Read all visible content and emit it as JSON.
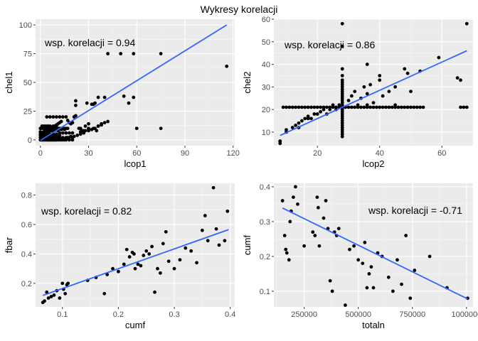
{
  "title": "Wykresy korelacji",
  "colors": {
    "panel_bg": "#ebebeb",
    "grid_major": "#ffffff",
    "grid_minor": "#f5f5f5",
    "points": "#000000",
    "trend_line": "#3366ff"
  },
  "chart_data": [
    {
      "type": "scatter",
      "title": "",
      "xlabel": "lcop1",
      "ylabel": "chel1",
      "xlim": [
        -3,
        121
      ],
      "ylim": [
        -5,
        105
      ],
      "xticks": [
        0,
        30,
        60,
        90,
        120
      ],
      "yticks": [
        0,
        25,
        50,
        75,
        100
      ],
      "annotation": "wsp. korelacji = 0.94",
      "trend": {
        "x": [
          0,
          116
        ],
        "y": [
          -0.5,
          100
        ]
      },
      "points": {
        "x": [
          0,
          0.5,
          1,
          1.5,
          2,
          2.5,
          3,
          3.5,
          4,
          4.5,
          5,
          5.5,
          6,
          6.5,
          7,
          7.5,
          8,
          8.5,
          9,
          9.5,
          10,
          11,
          12,
          13,
          14,
          15,
          16,
          18,
          20,
          0,
          1,
          1.5,
          2,
          3,
          4,
          5,
          6,
          7,
          8,
          9,
          10,
          11,
          12,
          14,
          16,
          18,
          20,
          0,
          1,
          2,
          3,
          4,
          5,
          6,
          7,
          8,
          10,
          12,
          0,
          0,
          1,
          2,
          3,
          4,
          5,
          6,
          8,
          0,
          1,
          2,
          3,
          4,
          5,
          6,
          7,
          8,
          9,
          10,
          11,
          12,
          13,
          14,
          15,
          16,
          1,
          2,
          3,
          4,
          5,
          6,
          8,
          10,
          1,
          2,
          4,
          6,
          8,
          10,
          12,
          14,
          16,
          18,
          20,
          2,
          3,
          4,
          5,
          6,
          7,
          9,
          11,
          13,
          15,
          3,
          4,
          5,
          6,
          7,
          8,
          9,
          10,
          11,
          12,
          13,
          4,
          6,
          8,
          10,
          12,
          14,
          16,
          22,
          22,
          24,
          25,
          26,
          28,
          28,
          29,
          30,
          30,
          32,
          33,
          34,
          35,
          36,
          17,
          17,
          19,
          21,
          23,
          25,
          27,
          30,
          33,
          36,
          38,
          40,
          42,
          25,
          27,
          30,
          32,
          34,
          36,
          38,
          17,
          18,
          19,
          20,
          21,
          22,
          40,
          42,
          50,
          52,
          55,
          58,
          58,
          60,
          75,
          75,
          116
        ],
        "y": [
          0,
          0,
          0,
          0,
          0,
          0,
          0,
          0,
          0,
          0,
          0,
          0,
          0,
          0,
          0,
          0,
          0,
          0,
          0,
          0,
          0,
          0,
          0,
          0,
          0,
          0,
          0,
          0,
          0,
          2,
          2,
          2,
          2,
          2,
          2,
          2,
          2,
          2,
          2,
          2,
          2,
          2,
          2,
          2,
          2,
          2,
          2,
          4,
          4,
          4,
          4,
          4,
          4,
          4,
          4,
          4,
          4,
          4,
          5,
          7,
          5,
          6,
          7,
          6,
          7,
          8,
          7,
          10,
          10,
          10,
          10,
          10,
          10,
          10,
          10,
          10,
          10,
          10,
          10,
          10,
          10,
          10,
          10,
          10,
          12,
          12,
          12,
          12,
          12,
          12,
          12,
          12,
          5,
          5,
          5,
          5,
          5,
          5,
          6,
          6,
          6,
          6,
          6,
          7,
          7,
          8,
          8,
          8,
          8,
          8,
          8,
          9,
          9,
          9,
          9,
          9,
          10,
          11,
          11,
          12,
          13,
          14,
          15,
          16,
          20,
          20,
          20,
          20,
          20,
          20,
          20,
          30,
          34,
          10,
          10,
          8,
          8,
          12,
          32,
          10,
          14,
          31,
          31,
          32,
          8,
          37,
          10,
          2,
          3,
          3,
          4,
          5,
          6,
          9,
          10,
          12,
          14,
          15,
          16,
          7,
          8,
          8,
          9,
          10,
          12,
          13,
          17,
          15,
          14,
          15,
          20,
          21,
          37,
          75,
          75,
          38,
          32,
          75,
          37,
          10,
          75,
          10,
          64
        ]
      }
    },
    {
      "type": "scatter",
      "title": "",
      "xlabel": "lcop2",
      "ylabel": "chel2",
      "xlim": [
        6,
        70
      ],
      "ylim": [
        4,
        60
      ],
      "xticks": [
        20,
        40,
        60
      ],
      "yticks": [
        10,
        20,
        30,
        40,
        50,
        60
      ],
      "annotation": "wsp. korelacji = 0.86",
      "trend": {
        "x": [
          8,
          68
        ],
        "y": [
          8.5,
          46
        ]
      },
      "points": {
        "x": [
          8,
          8,
          8,
          10,
          10,
          12,
          13,
          14,
          14,
          15,
          16,
          17,
          17,
          18,
          19,
          20,
          21,
          22,
          23,
          24,
          25,
          26,
          27,
          9,
          10,
          11,
          12,
          13,
          14,
          15,
          16,
          17,
          18,
          19,
          20,
          21,
          22,
          23,
          24,
          25,
          26,
          27,
          28,
          29,
          30,
          31,
          32,
          33,
          34,
          35,
          36,
          37,
          38,
          39,
          40,
          41,
          42,
          43,
          44,
          45,
          46,
          47,
          48,
          49,
          50,
          51,
          52,
          53,
          54,
          66,
          67,
          68,
          28,
          28,
          28,
          28,
          28,
          28,
          28,
          28,
          28,
          28,
          28,
          28,
          28,
          28,
          28,
          28,
          28,
          28,
          28,
          28,
          28,
          28,
          28,
          28,
          28,
          28,
          28,
          28,
          28,
          30,
          31,
          32,
          33,
          34,
          35,
          36,
          36,
          37,
          38,
          40,
          40,
          41,
          43,
          45,
          48,
          50,
          53,
          59,
          65,
          66,
          68,
          36,
          45,
          49,
          28
        ],
        "y": [
          5,
          6,
          6,
          10,
          11,
          12,
          13,
          12,
          14,
          15,
          16,
          16,
          17,
          16,
          18,
          18,
          19,
          20,
          18,
          20,
          22,
          20,
          22,
          21,
          21,
          21,
          21,
          21,
          21,
          21,
          21,
          21,
          21,
          21,
          21,
          21,
          21,
          21,
          21,
          21,
          21,
          21,
          21,
          21,
          21,
          21,
          21,
          21,
          21,
          21,
          21,
          21,
          21,
          21,
          21,
          21,
          21,
          21,
          21,
          21,
          21,
          21,
          21,
          21,
          21,
          21,
          21,
          21,
          21,
          21,
          21,
          21,
          8,
          9,
          10,
          11,
          12,
          13,
          14,
          15,
          16,
          17,
          18,
          19,
          20,
          22,
          23,
          24,
          25,
          26,
          27,
          28,
          29,
          30,
          31,
          32,
          33,
          35,
          38,
          48,
          58,
          24,
          26,
          28,
          22,
          25,
          30,
          27,
          22,
          31,
          23,
          35,
          33,
          26,
          28,
          30,
          38,
          28,
          37,
          43,
          34,
          33,
          58,
          40,
          22,
          36,
          20
        ]
      }
    },
    {
      "type": "scatter",
      "title": "",
      "xlabel": "cumf",
      "ylabel": "fbar",
      "xlim": [
        0.052,
        0.408
      ],
      "ylim": [
        0.04,
        0.88
      ],
      "xticks": [
        0.1,
        0.2,
        0.3,
        0.4
      ],
      "yticks": [
        0.2,
        0.4,
        0.6,
        0.8
      ],
      "annotation": "wsp. korelacji = 0.82",
      "trend": {
        "x": [
          0.065,
          0.397
        ],
        "y": [
          0.118,
          0.565
        ]
      },
      "points": {
        "x": [
          0.065,
          0.068,
          0.072,
          0.075,
          0.08,
          0.085,
          0.09,
          0.095,
          0.1,
          0.102,
          0.105,
          0.108,
          0.11,
          0.145,
          0.16,
          0.175,
          0.18,
          0.19,
          0.2,
          0.21,
          0.215,
          0.22,
          0.225,
          0.228,
          0.23,
          0.235,
          0.24,
          0.245,
          0.25,
          0.255,
          0.26,
          0.265,
          0.27,
          0.275,
          0.28,
          0.285,
          0.29,
          0.3,
          0.31,
          0.32,
          0.33,
          0.34,
          0.35,
          0.355,
          0.36,
          0.37,
          0.375,
          0.38,
          0.39,
          0.395
        ],
        "y": [
          0.07,
          0.08,
          0.14,
          0.1,
          0.11,
          0.12,
          0.15,
          0.1,
          0.2,
          0.16,
          0.13,
          0.19,
          0.2,
          0.22,
          0.24,
          0.13,
          0.26,
          0.3,
          0.28,
          0.33,
          0.43,
          0.38,
          0.41,
          0.4,
          0.3,
          0.33,
          0.32,
          0.39,
          0.42,
          0.4,
          0.45,
          0.14,
          0.3,
          0.27,
          0.47,
          0.55,
          0.35,
          0.3,
          0.36,
          0.44,
          0.42,
          0.34,
          0.56,
          0.66,
          0.49,
          0.85,
          0.57,
          0.46,
          0.49,
          0.69
        ]
      }
    },
    {
      "type": "scatter",
      "title": "",
      "xlabel": "totaln",
      "ylabel": "cumf",
      "xlim": [
        110000,
        1030000
      ],
      "ylim": [
        0.055,
        0.41
      ],
      "xticks": [
        250000,
        500000,
        750000,
        1000000
      ],
      "yticks": [
        0.1,
        0.2,
        0.3,
        0.4
      ],
      "xticklabels": [
        "250000",
        "500000",
        "750000",
        "1000000"
      ],
      "annotation": "wsp. korelacji = -0.71",
      "trend": {
        "x": [
          150000,
          1005000
        ],
        "y": [
          0.339,
          0.078
        ]
      },
      "points": {
        "x": [
          150000,
          160000,
          165000,
          170000,
          180000,
          185000,
          190000,
          200000,
          210000,
          220000,
          250000,
          290000,
          300000,
          310000,
          315000,
          320000,
          340000,
          350000,
          360000,
          370000,
          380000,
          390000,
          400000,
          410000,
          440000,
          460000,
          480000,
          500000,
          520000,
          530000,
          540000,
          550000,
          560000,
          570000,
          590000,
          610000,
          640000,
          660000,
          680000,
          700000,
          720000,
          740000,
          760000,
          830000,
          910000,
          1005000
        ],
        "y": [
          0.36,
          0.26,
          0.22,
          0.21,
          0.19,
          0.3,
          0.33,
          0.37,
          0.4,
          0.35,
          0.23,
          0.27,
          0.26,
          0.37,
          0.34,
          0.23,
          0.31,
          0.36,
          0.28,
          0.13,
          0.1,
          0.27,
          0.26,
          0.28,
          0.06,
          0.22,
          0.23,
          0.19,
          0.18,
          0.24,
          0.11,
          0.15,
          0.17,
          0.11,
          0.21,
          0.2,
          0.14,
          0.1,
          0.19,
          0.12,
          0.26,
          0.08,
          0.16,
          0.2,
          0.11,
          0.08
        ]
      }
    }
  ]
}
